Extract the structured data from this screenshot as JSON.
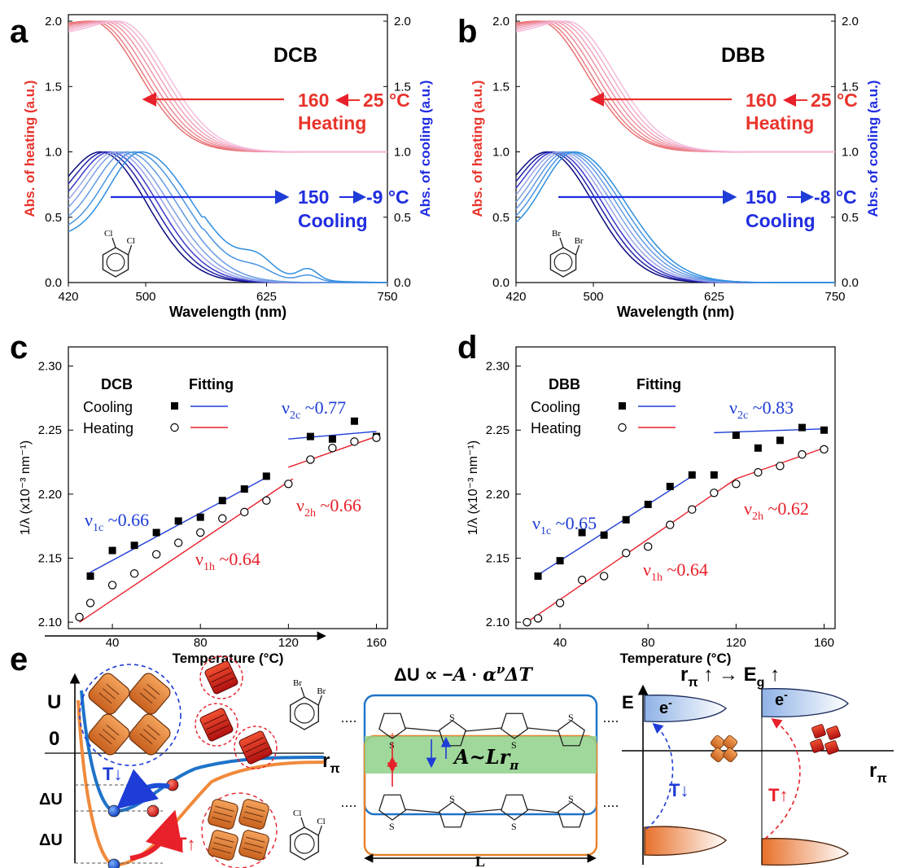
{
  "panel_letters": [
    "a",
    "b",
    "c",
    "d",
    "e"
  ],
  "colors": {
    "heating": "#e8342c",
    "cooling": "#1f2de0",
    "heating_fit": "#e8202a",
    "cooling_fit": "#1e3cd6",
    "orange": "#f08a3c",
    "blue_line": "#1e73c8",
    "green_band": "#8fd18a"
  },
  "chart_data": [
    {
      "panel": "a",
      "type": "line",
      "title": "DCB",
      "xlabel": "Wavelength (nm)",
      "ylabel_left": "Abs. of heating (a.u.)",
      "ylabel_right": "Abs. of cooling (a.u.)",
      "xlim": [
        420,
        750
      ],
      "ylim": [
        0,
        2.05
      ],
      "x_ticks": [
        "420",
        "500",
        "625",
        "750"
      ],
      "y_ticks": [
        "0.0",
        "0.5",
        "1.0",
        "1.5",
        "2.0"
      ],
      "heating_label": "160",
      "heating_label_end": "25 °C",
      "heating_word": "Heating",
      "cooling_label": "150",
      "cooling_label_end": "-9 °C",
      "cooling_word": "Cooling",
      "heating_peaks": [
        443,
        447,
        452,
        457,
        462,
        467,
        472
      ],
      "cooling_peaks": [
        453,
        458,
        463,
        468,
        473,
        480,
        488,
        495
      ],
      "molecule": "o-dichlorobenzene",
      "molecule_atom": "Cl"
    },
    {
      "panel": "b",
      "type": "line",
      "title": "DBB",
      "xlabel": "Wavelength (nm)",
      "ylabel_left": "Abs. of heating (a.u.)",
      "ylabel_right": "Abs. of cooling (a.u.)",
      "xlim": [
        420,
        750
      ],
      "ylim": [
        0,
        2.05
      ],
      "x_ticks": [
        "420",
        "500",
        "625",
        "750"
      ],
      "y_ticks": [
        "0.0",
        "0.5",
        "1.0",
        "1.5",
        "2.0"
      ],
      "heating_label": "160",
      "heating_label_end": "25 °C",
      "heating_word": "Heating",
      "cooling_label": "150",
      "cooling_label_end": "-8 °C",
      "cooling_word": "Cooling",
      "heating_peaks": [
        443,
        447,
        452,
        457,
        462,
        467,
        472
      ],
      "cooling_peaks": [
        452,
        456,
        460,
        464,
        468,
        472,
        476,
        480
      ],
      "molecule": "o-dibromobenzene",
      "molecule_atom": "Br"
    },
    {
      "panel": "c",
      "type": "scatter",
      "xlabel": "Temperature (°C)",
      "ylabel": "1/λ (x10⁻³ nm⁻¹)",
      "xlim": [
        20,
        165
      ],
      "ylim": [
        2.095,
        2.315
      ],
      "x_ticks": [
        "40",
        "80",
        "120",
        "160"
      ],
      "y_ticks": [
        "2.10",
        "2.15",
        "2.20",
        "2.25",
        "2.30"
      ],
      "legend": {
        "solvent": "DCB",
        "fitting": "Fitting",
        "cooling": "Cooling",
        "heating": "Heating"
      },
      "cooling": {
        "x": [
          30,
          40,
          50,
          60,
          70,
          80,
          90,
          100,
          110,
          130,
          140,
          150,
          160
        ],
        "y": [
          2.136,
          2.156,
          2.16,
          2.17,
          2.179,
          2.182,
          2.195,
          2.204,
          2.214,
          2.245,
          2.243,
          2.257,
          2.245
        ]
      },
      "heating": {
        "x": [
          25,
          30,
          40,
          50,
          60,
          70,
          80,
          90,
          100,
          110,
          120,
          130,
          140,
          150,
          160
        ],
        "y": [
          2.104,
          2.115,
          2.129,
          2.138,
          2.153,
          2.162,
          2.17,
          2.181,
          2.186,
          2.195,
          2.208,
          2.227,
          2.236,
          2.241,
          2.244
        ]
      },
      "fits": [
        {
          "series": "cooling",
          "x": [
            30,
            110
          ],
          "y": [
            2.139,
            2.213
          ]
        },
        {
          "series": "cooling",
          "x": [
            120,
            160
          ],
          "y": [
            2.243,
            2.249
          ]
        },
        {
          "series": "heating",
          "x": [
            25,
            122
          ],
          "y": [
            2.1,
            2.212
          ]
        },
        {
          "series": "heating",
          "x": [
            120,
            160
          ],
          "y": [
            2.221,
            2.245
          ]
        }
      ],
      "annotations": [
        {
          "sym": "ν",
          "sub": "1c",
          "text": " ~0.66",
          "series": "cooling"
        },
        {
          "sym": "ν",
          "sub": "1h",
          "text": " ~0.64",
          "series": "heating"
        },
        {
          "sym": "ν",
          "sub": "2c",
          "text": " ~0.77",
          "series": "cooling"
        },
        {
          "sym": "ν",
          "sub": "2h",
          "text": " ~0.66",
          "series": "heating"
        }
      ]
    },
    {
      "panel": "d",
      "type": "scatter",
      "xlabel": "Temperature (°C)",
      "ylabel": "1/λ (x10⁻³ nm⁻¹)",
      "xlim": [
        20,
        165
      ],
      "ylim": [
        2.095,
        2.315
      ],
      "x_ticks": [
        "40",
        "80",
        "120",
        "160"
      ],
      "y_ticks": [
        "2.10",
        "2.15",
        "2.20",
        "2.25",
        "2.30"
      ],
      "legend": {
        "solvent": "DBB",
        "fitting": "Fitting",
        "cooling": "Cooling",
        "heating": "Heating"
      },
      "cooling": {
        "x": [
          30,
          40,
          50,
          60,
          70,
          80,
          90,
          100,
          110,
          120,
          130,
          140,
          150,
          160
        ],
        "y": [
          2.136,
          2.148,
          2.17,
          2.168,
          2.18,
          2.192,
          2.206,
          2.215,
          2.215,
          2.246,
          2.236,
          2.242,
          2.252,
          2.25
        ]
      },
      "heating": {
        "x": [
          25,
          30,
          40,
          50,
          60,
          70,
          80,
          90,
          100,
          110,
          120,
          130,
          140,
          150,
          160
        ],
        "y": [
          2.1,
          2.103,
          2.115,
          2.133,
          2.136,
          2.154,
          2.159,
          2.176,
          2.188,
          2.201,
          2.208,
          2.217,
          2.222,
          2.231,
          2.235
        ]
      },
      "fits": [
        {
          "series": "cooling",
          "x": [
            30,
            100
          ],
          "y": [
            2.137,
            2.214
          ]
        },
        {
          "series": "cooling",
          "x": [
            110,
            160
          ],
          "y": [
            2.248,
            2.251
          ]
        },
        {
          "series": "heating",
          "x": [
            25,
            120
          ],
          "y": [
            2.1,
            2.212
          ]
        },
        {
          "series": "heating",
          "x": [
            120,
            160
          ],
          "y": [
            2.212,
            2.236
          ]
        }
      ],
      "annotations": [
        {
          "sym": "ν",
          "sub": "1c",
          "text": " ~0.65",
          "series": "cooling"
        },
        {
          "sym": "ν",
          "sub": "1h",
          "text": " ~0.64",
          "series": "heating"
        },
        {
          "sym": "ν",
          "sub": "2c",
          "text": " ~0.83",
          "series": "cooling"
        },
        {
          "sym": "ν",
          "sub": "2h",
          "text": " ~0.62",
          "series": "heating"
        }
      ]
    }
  ],
  "panel_e": {
    "potential": {
      "y_axis": "U",
      "zero": "0",
      "x_axis": "r",
      "x_axis_sub": "π",
      "delta_u": [
        "ΔU",
        "ΔU"
      ],
      "t_down": "T↓",
      "t_up": "T↑",
      "atom_br": "Br",
      "atom_cl": "Cl"
    },
    "model": {
      "equation_left": "ΔU ∝ −",
      "equation_a": "A",
      "equation_mid": " · ",
      "equation_alpha": "α",
      "equation_exp": "ν",
      "equation_dt": "ΔT",
      "band_text": "A~Lr",
      "band_sub": "π",
      "length": "L",
      "sulfur": "S"
    },
    "energy": {
      "title_r": "r",
      "title_sub": "π",
      "title_rest": " ↑ → ",
      "title_e": "E",
      "title_esub": "g",
      "title_up": " ↑",
      "y_axis": "E",
      "x_axis": "r",
      "x_axis_sub": "π",
      "electron": "e",
      "electron_sup": "-",
      "t_down": "T↓",
      "t_up": "T↑"
    }
  }
}
